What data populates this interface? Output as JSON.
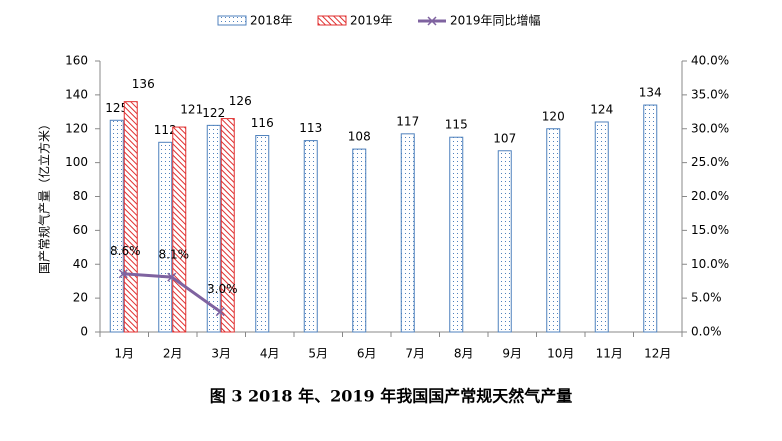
{
  "chart_data": {
    "type": "bar",
    "title": "图 3 2018 年、2019 年我国国产常规天然气产量",
    "y_label": "国产常规气产量（亿立方米）",
    "categories": [
      "1月",
      "2月",
      "3月",
      "4月",
      "5月",
      "6月",
      "7月",
      "8月",
      "9月",
      "10月",
      "11月",
      "12月"
    ],
    "series": [
      {
        "name": "2018年",
        "type": "bar",
        "color": "#4f81bd",
        "values": [
          125,
          112,
          122,
          116,
          113,
          108,
          117,
          115,
          107,
          120,
          124,
          134
        ]
      },
      {
        "name": "2019年",
        "type": "bar",
        "color": "#e03030",
        "values": [
          136,
          121,
          126,
          null,
          null,
          null,
          null,
          null,
          null,
          null,
          null,
          null
        ]
      },
      {
        "name": "2019年同比增幅",
        "type": "line",
        "axis": "y2",
        "color": "#7f63a0",
        "values": [
          8.6,
          8.1,
          3.0,
          null,
          null,
          null,
          null,
          null,
          null,
          null,
          null,
          null
        ],
        "value_labels": [
          "8.6%",
          "8.1%",
          "3.0%",
          null,
          null,
          null,
          null,
          null,
          null,
          null,
          null,
          null
        ]
      }
    ],
    "ylim": [
      0,
      160
    ],
    "yticks": [
      0,
      20,
      40,
      60,
      80,
      100,
      120,
      140,
      160
    ],
    "y2lim": [
      0,
      40
    ],
    "y2ticks": [
      {
        "value": 0,
        "label": "0.0%"
      },
      {
        "value": 5,
        "label": "5.0%"
      },
      {
        "value": 10,
        "label": "10.0%"
      },
      {
        "value": 15,
        "label": "15.0%"
      },
      {
        "value": 20,
        "label": "20.0%"
      },
      {
        "value": 25,
        "label": "25.0%"
      },
      {
        "value": 30,
        "label": "30.0%"
      },
      {
        "value": 35,
        "label": "35.0%"
      },
      {
        "value": 40,
        "label": "40.0%"
      }
    ],
    "legend": "top"
  }
}
